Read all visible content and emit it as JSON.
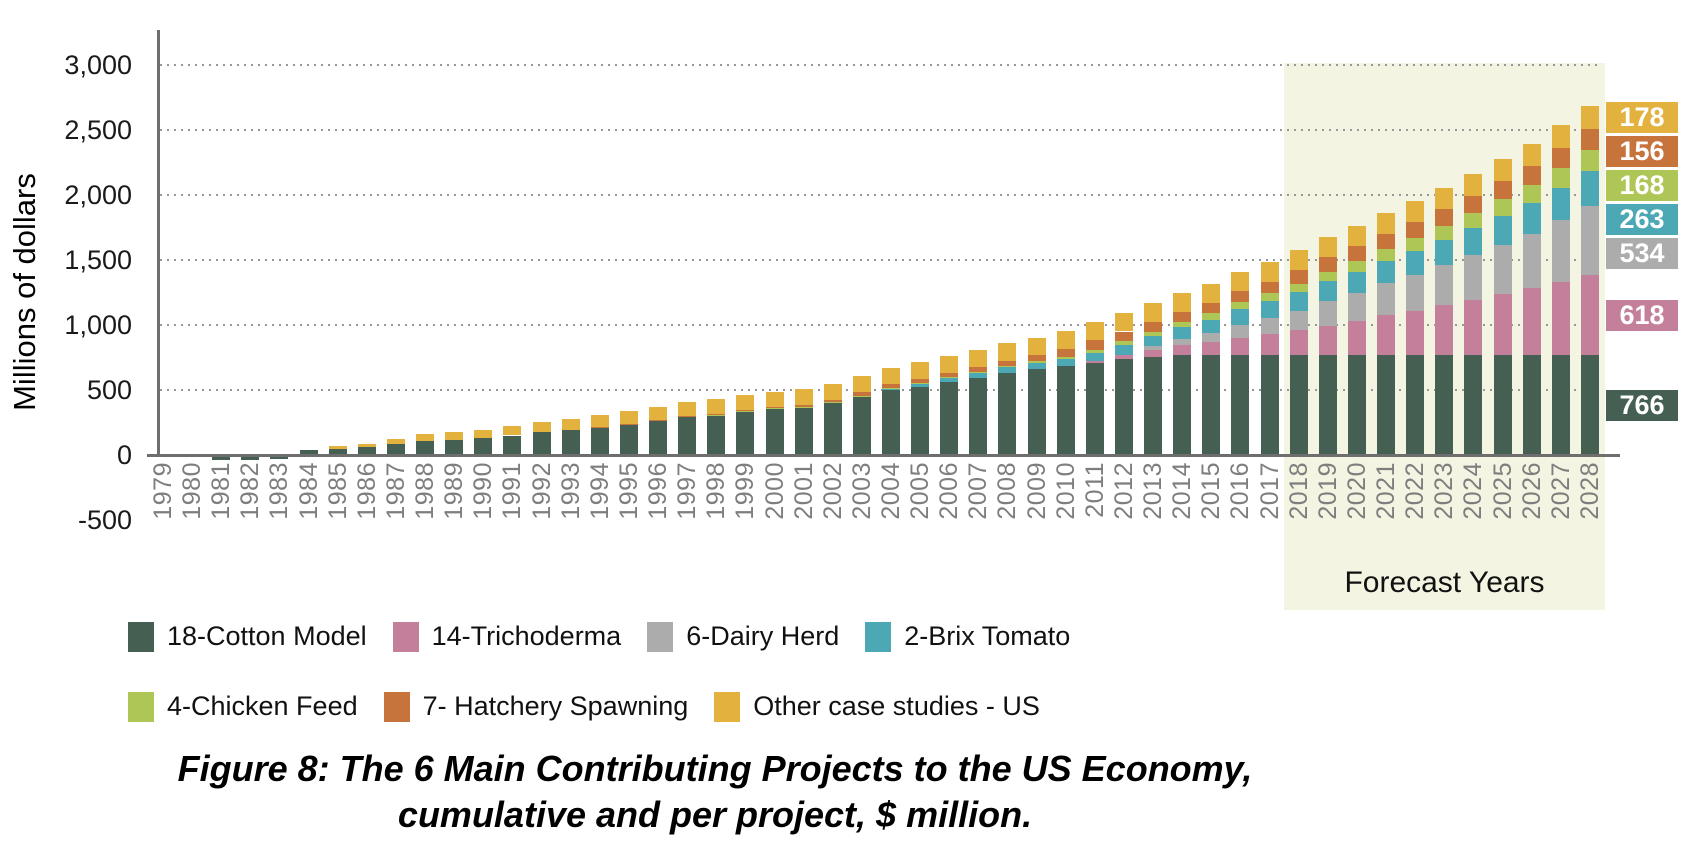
{
  "figure": {
    "caption_line1": "Figure 8: The 6 Main Contributing Projects to the US Economy,",
    "caption_line2": "cumulative and per project, $ million."
  },
  "chart_data": {
    "type": "bar",
    "stacked": true,
    "title": "",
    "xlabel": "",
    "ylabel": "Millions of dollars",
    "ylim": [
      -500,
      3250
    ],
    "grid": "dotted horizontal",
    "legend_position": "bottom",
    "y_ticks": [
      {
        "value": 3000,
        "label": "3,000"
      },
      {
        "value": 2500,
        "label": "2,500"
      },
      {
        "value": 2000,
        "label": "2,000"
      },
      {
        "value": 1500,
        "label": "1,500"
      },
      {
        "value": 1000,
        "label": "1,000"
      },
      {
        "value": 500,
        "label": "500"
      },
      {
        "value": 0,
        "label": "0"
      },
      {
        "value": -500,
        "label": "-500"
      }
    ],
    "categories": [
      "1979",
      "1980",
      "1981",
      "1982",
      "1983",
      "1984",
      "1985",
      "1986",
      "1987",
      "1988",
      "1989",
      "1990",
      "1991",
      "1992",
      "1993",
      "1994",
      "1995",
      "1996",
      "1997",
      "1998",
      "1999",
      "2000",
      "2001",
      "2002",
      "2003",
      "2004",
      "2005",
      "2006",
      "2007",
      "2008",
      "2009",
      "2010",
      "2011",
      "2012",
      "2013",
      "2014",
      "2015",
      "2016",
      "2017",
      "2018",
      "2019",
      "2020",
      "2021",
      "2022",
      "2023",
      "2024",
      "2025",
      "2026",
      "2027",
      "2028"
    ],
    "forecast": {
      "start_year": "2018",
      "end_year": "2028",
      "label": "Forecast Years",
      "band_color": "#f3f4e1"
    },
    "series": [
      {
        "name": "18-Cotton Model",
        "color": "#465f53",
        "end_label": "766",
        "values": [
          0,
          0,
          -20,
          -25,
          -18,
          35,
          48,
          58,
          85,
          105,
          118,
          130,
          150,
          178,
          190,
          210,
          235,
          260,
          290,
          305,
          335,
          356,
          366,
          400,
          446,
          500,
          525,
          561,
          592,
          631,
          661,
          684,
          707,
          738,
          755,
          766,
          766,
          766,
          766,
          766,
          766,
          766,
          766,
          766,
          766,
          766,
          766,
          766,
          766,
          766
        ]
      },
      {
        "name": "14-Trichoderma",
        "color": "#c4809b",
        "end_label": "618",
        "values": [
          0,
          0,
          0,
          0,
          0,
          0,
          0,
          0,
          0,
          0,
          0,
          0,
          0,
          0,
          0,
          0,
          0,
          0,
          0,
          0,
          0,
          0,
          0,
          0,
          0,
          0,
          0,
          0,
          0,
          0,
          0,
          0,
          15,
          35,
          55,
          80,
          100,
          135,
          165,
          195,
          230,
          265,
          310,
          345,
          385,
          425,
          470,
          515,
          565,
          618
        ]
      },
      {
        "name": "6-Dairy Herd",
        "color": "#acacac",
        "end_label": "534",
        "values": [
          0,
          0,
          0,
          0,
          0,
          0,
          0,
          0,
          0,
          0,
          0,
          0,
          0,
          0,
          0,
          0,
          0,
          0,
          0,
          0,
          0,
          0,
          0,
          0,
          0,
          0,
          0,
          0,
          0,
          0,
          0,
          0,
          0,
          0,
          25,
          50,
          70,
          100,
          125,
          150,
          185,
          215,
          245,
          275,
          310,
          345,
          380,
          420,
          475,
          534
        ]
      },
      {
        "name": "2-Brix Tomato",
        "color": "#4ba8b4",
        "end_label": "263",
        "values": [
          0,
          0,
          0,
          0,
          0,
          0,
          0,
          0,
          0,
          0,
          0,
          0,
          0,
          0,
          0,
          0,
          0,
          0,
          0,
          0,
          0,
          0,
          0,
          0,
          0,
          8,
          25,
          30,
          40,
          45,
          50,
          58,
          65,
          75,
          80,
          90,
          105,
          120,
          130,
          140,
          155,
          165,
          175,
          185,
          195,
          210,
          225,
          238,
          250,
          263
        ]
      },
      {
        "name": "4-Chicken Feed",
        "color": "#aec655",
        "end_label": "168",
        "values": [
          0,
          0,
          0,
          0,
          0,
          0,
          0,
          0,
          0,
          0,
          0,
          0,
          0,
          0,
          0,
          0,
          0,
          0,
          0,
          3,
          3,
          4,
          4,
          4,
          5,
          5,
          6,
          7,
          8,
          9,
          10,
          12,
          20,
          30,
          35,
          40,
          48,
          55,
          60,
          65,
          72,
          78,
          85,
          95,
          105,
          115,
          128,
          140,
          154,
          168
        ]
      },
      {
        "name": "7- Hatchery Spawning",
        "color": "#c7733c",
        "end_label": "156",
        "values": [
          0,
          0,
          0,
          0,
          0,
          0,
          0,
          0,
          0,
          0,
          0,
          0,
          0,
          0,
          0,
          3,
          5,
          8,
          8,
          10,
          10,
          12,
          15,
          18,
          32,
          30,
          30,
          33,
          36,
          40,
          45,
          60,
          75,
          72,
          75,
          74,
          78,
          82,
          86,
          106,
          112,
          116,
          120,
          125,
          130,
          135,
          140,
          145,
          150,
          156
        ]
      },
      {
        "name": "Other case studies - US",
        "color": "#e2b13e",
        "end_label": "178",
        "values": [
          0,
          0,
          0,
          0,
          0,
          0,
          18,
          25,
          40,
          55,
          60,
          65,
          70,
          78,
          88,
          95,
          100,
          105,
          108,
          112,
          112,
          116,
          120,
          122,
          124,
          126,
          128,
          130,
          132,
          134,
          136,
          138,
          140,
          142,
          144,
          146,
          148,
          150,
          152,
          154,
          157,
          158,
          160,
          162,
          164,
          166,
          169,
          172,
          175,
          178
        ]
      }
    ]
  }
}
